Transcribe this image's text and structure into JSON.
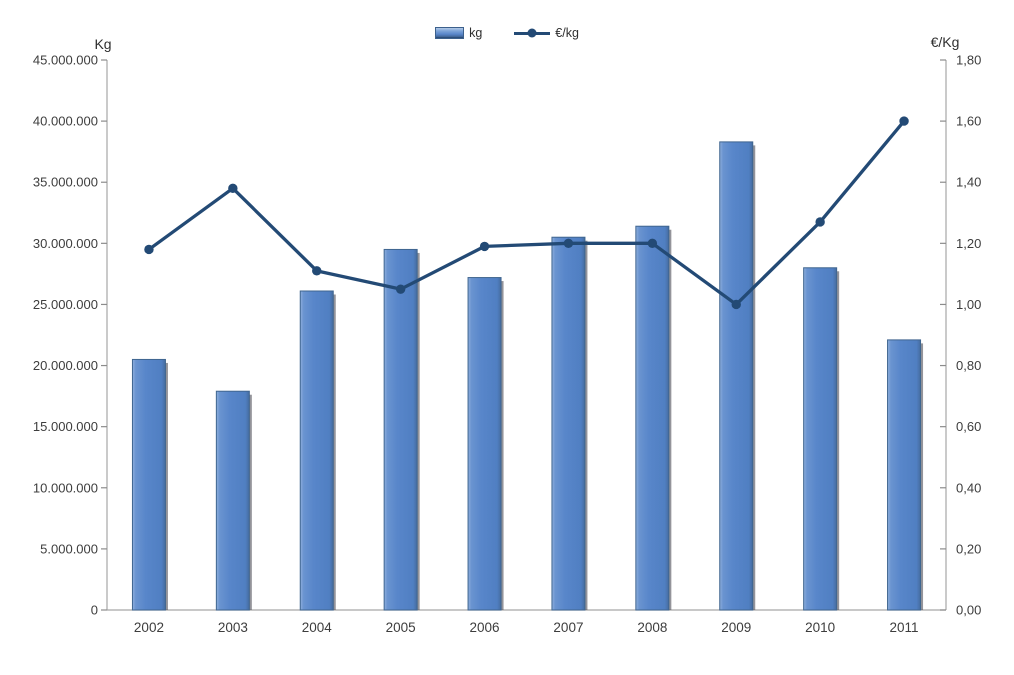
{
  "chart_data": {
    "type": "combo",
    "categories": [
      "2002",
      "2003",
      "2004",
      "2005",
      "2006",
      "2007",
      "2008",
      "2009",
      "2010",
      "2011"
    ],
    "series": [
      {
        "name": "kg",
        "type": "bar",
        "axis": "left",
        "color": "#5886ca",
        "values": [
          20500000,
          17900000,
          26100000,
          29500000,
          27200000,
          30500000,
          31400000,
          38300000,
          28000000,
          22100000
        ]
      },
      {
        "name": "€/kg",
        "type": "line",
        "axis": "right",
        "color": "#234a75",
        "values": [
          1.18,
          1.38,
          1.11,
          1.05,
          1.19,
          1.2,
          1.2,
          1.0,
          1.27,
          1.6
        ]
      }
    ],
    "left_axis": {
      "title": "Kg",
      "min": 0,
      "max": 45000000,
      "step": 5000000,
      "tick_labels": [
        "45.000.000",
        "40.000.000",
        "35.000.000",
        "30.000.000",
        "25.000.000",
        "20.000.000",
        "15.000.000",
        "10.000.000",
        "5.000.000",
        "0"
      ]
    },
    "right_axis": {
      "title": "€/Kg",
      "min": 0,
      "max": 1.8,
      "step": 0.2,
      "tick_labels": [
        "1,80",
        "1,60",
        "1,40",
        "1,20",
        "1,00",
        "0,80",
        "0,60",
        "0,40",
        "0,20",
        "0,00"
      ]
    },
    "legend": {
      "position": "top"
    },
    "grid": "off",
    "colors": {
      "axis_line": "#a6a6a6",
      "tick_mark": "#8c8c8c",
      "label_text": "#3d3d3d",
      "bar_outline": "#3f658f",
      "bar_shadow": "#5a5a64",
      "line_series": "#234a75"
    }
  }
}
